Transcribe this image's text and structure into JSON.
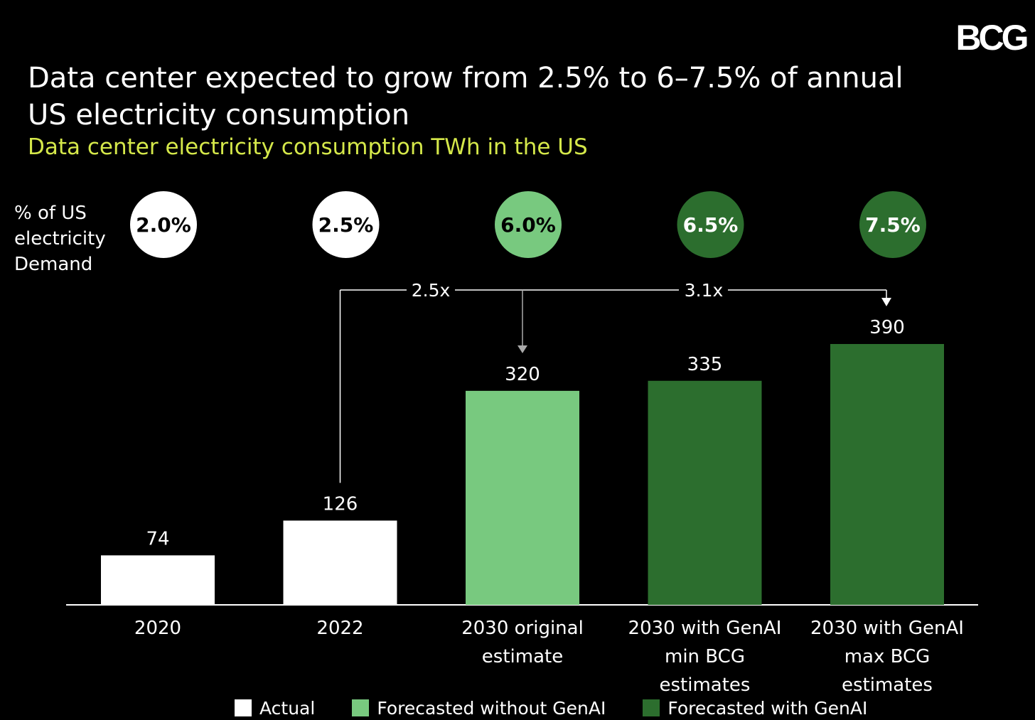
{
  "brand": {
    "logo_text": "BCG"
  },
  "header": {
    "title_line1": "Data center expected to grow from 2.5% to 6–7.5% of annual",
    "title_line2": "US electricity consumption",
    "subtitle": "Data center electricity consumption TWh in the US"
  },
  "percent_row": {
    "label_lines": [
      "% of US",
      "electricity",
      "Demand"
    ]
  },
  "colors": {
    "background": "#000000",
    "actual": "#ffffff",
    "forecast_without_genai": "#78c97f",
    "forecast_with_genai": "#2c6e2e",
    "subtitle": "#d5e84a"
  },
  "chart_data": {
    "type": "bar",
    "unit": "TWh",
    "categories": [
      [
        "2020"
      ],
      [
        "2022"
      ],
      [
        "2030 original",
        "estimate"
      ],
      [
        "2030 with GenAI",
        "min BCG",
        "estimates"
      ],
      [
        "2030 with GenAI",
        "max BCG",
        "estimates"
      ]
    ],
    "values": [
      74,
      126,
      320,
      335,
      390
    ],
    "value_labels": [
      "74",
      "126",
      "320",
      "335",
      "390"
    ],
    "share_of_us_demand": [
      "2.0%",
      "2.5%",
      "6.0%",
      "6.5%",
      "7.5%"
    ],
    "groups": [
      "actual",
      "actual",
      "forecast_without_genai",
      "forecast_with_genai",
      "forecast_with_genai"
    ],
    "ylim": [
      0,
      390
    ],
    "annotations": [
      {
        "text": "2.5x",
        "from": 1,
        "to": 2
      },
      {
        "text": "3.1x",
        "from": 1,
        "to": 4
      }
    ],
    "legend": [
      {
        "key": "actual",
        "label": "Actual"
      },
      {
        "key": "forecast_without_genai",
        "label": "Forecasted without GenAI"
      },
      {
        "key": "forecast_with_genai",
        "label": "Forecasted with GenAI"
      }
    ],
    "legend_position": "bottom",
    "grid": false
  }
}
